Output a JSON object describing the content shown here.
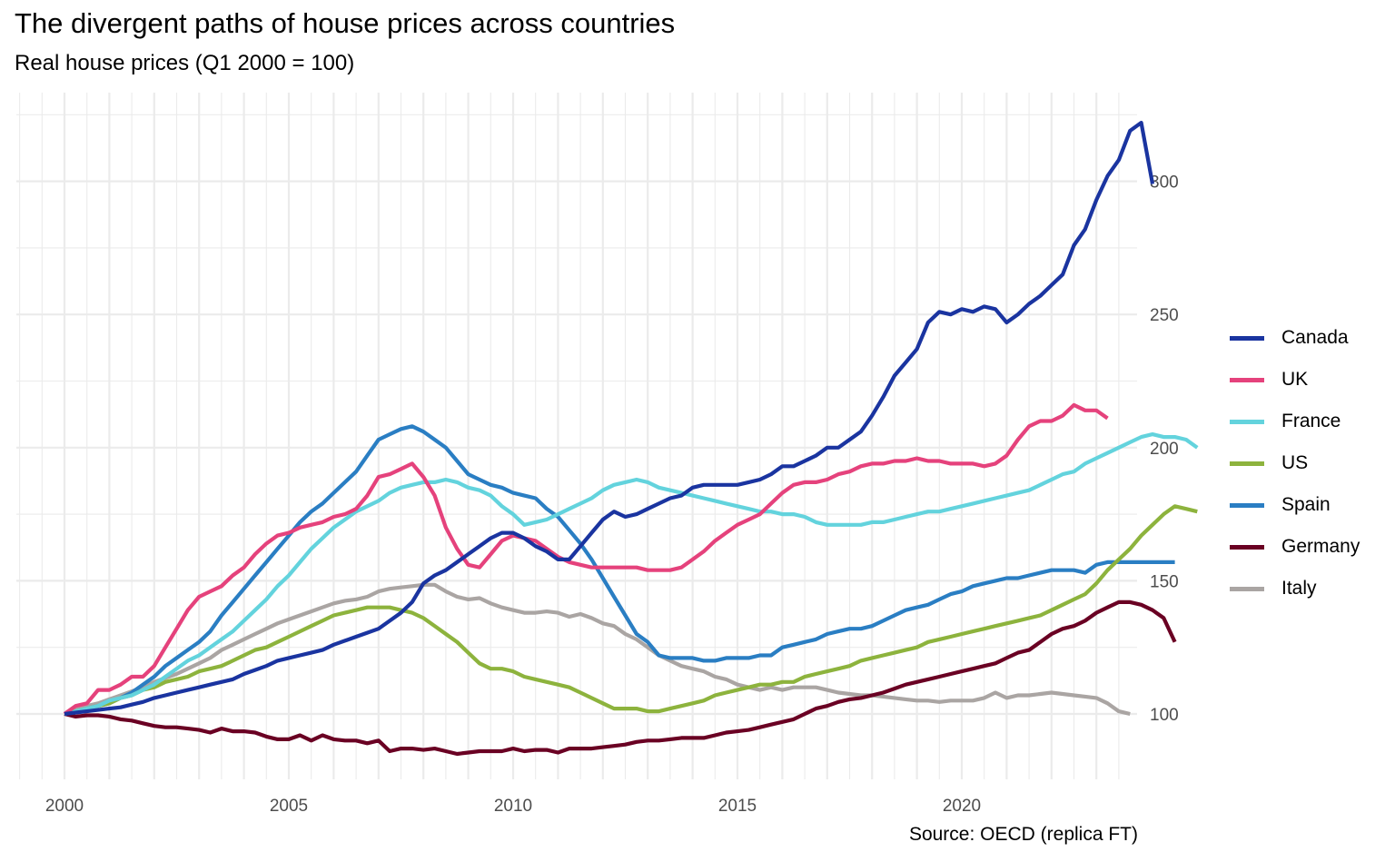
{
  "title": "The divergent paths of house prices across countries",
  "subtitle": "Real house prices (Q1 2000 = 100)",
  "caption": "Source: OECD (replica FT)",
  "chart_data": {
    "type": "line",
    "title": "The divergent paths of house prices across countries",
    "subtitle": "Real house prices (Q1 2000 = 100)",
    "xlabel": "",
    "ylabel": "",
    "x_start": 2000,
    "x_step": 0.25,
    "xlim": [
      1999,
      2023.9
    ],
    "ylim": [
      75,
      325
    ],
    "x_ticks": [
      2000,
      2005,
      2010,
      2015,
      2020
    ],
    "x_tick_labels": [
      "2000",
      "2005",
      "2010",
      "2015",
      "2020"
    ],
    "y_ticks": [
      100,
      150,
      200,
      250,
      300
    ],
    "y_tick_labels": [
      "100",
      "150",
      "200",
      "250",
      "300"
    ],
    "y_axis_position": "right",
    "grid": true,
    "legend_position": "right",
    "series": [
      {
        "name": "Canada",
        "color": "#1a34a0",
        "values": [
          100,
          100.5,
          101,
          101.5,
          102,
          102.5,
          103.5,
          104.5,
          106,
          107,
          108,
          109,
          110,
          111,
          112,
          113,
          115,
          116.5,
          118,
          120,
          121,
          122,
          123,
          124,
          126,
          127.5,
          129,
          130.5,
          132,
          135,
          138,
          142,
          149,
          152,
          154,
          157,
          160,
          163,
          166,
          168,
          168,
          166,
          163,
          161,
          158,
          158,
          163,
          168,
          173,
          176,
          174,
          175,
          177,
          179,
          181,
          182,
          185,
          186,
          186,
          186,
          186,
          187,
          188,
          190,
          193,
          193,
          195,
          197,
          200,
          200,
          203,
          206,
          212,
          219,
          227,
          232,
          237,
          247,
          251,
          250,
          252,
          251,
          253,
          252,
          247,
          250,
          254,
          257,
          261,
          265,
          276,
          282,
          293,
          302,
          308,
          319,
          322,
          299
        ]
      },
      {
        "name": "UK",
        "color": "#e5427c",
        "values": [
          100,
          103,
          104,
          109,
          109,
          111,
          114,
          114,
          118,
          125,
          132,
          139,
          144,
          146,
          148,
          152,
          155,
          160,
          164,
          167,
          168,
          170,
          171,
          172,
          174,
          175,
          177,
          182,
          189,
          190,
          192,
          194,
          189,
          182,
          170,
          162,
          156,
          155,
          160,
          165,
          167,
          166,
          165,
          162,
          159,
          157,
          156,
          155,
          155,
          155,
          155,
          155,
          154,
          154,
          154,
          155,
          158,
          161,
          165,
          168,
          171,
          173,
          175,
          179,
          183,
          186,
          187,
          187,
          188,
          190,
          191,
          193,
          194,
          194,
          195,
          195,
          196,
          195,
          195,
          194,
          194,
          194,
          193,
          194,
          197,
          203,
          208,
          210,
          210,
          212,
          216,
          214,
          214,
          211
        ]
      },
      {
        "name": "France",
        "color": "#63d3dd",
        "values": [
          100,
          101,
          102,
          103,
          105,
          106,
          107,
          109,
          111,
          114,
          117,
          120,
          122,
          125,
          128,
          131,
          135,
          139,
          143,
          148,
          152,
          157,
          162,
          166,
          170,
          173,
          176,
          178,
          180,
          183,
          185,
          186,
          187,
          187,
          188,
          187,
          185,
          184,
          182,
          178,
          175,
          171,
          172,
          173,
          175,
          177,
          179,
          181,
          184,
          186,
          187,
          188,
          187,
          185,
          184,
          183,
          182,
          181,
          180,
          179,
          178,
          177,
          176,
          176,
          175,
          175,
          174,
          172,
          171,
          171,
          171,
          171,
          172,
          172,
          173,
          174,
          175,
          176,
          176,
          177,
          178,
          179,
          180,
          181,
          182,
          183,
          184,
          186,
          188,
          190,
          191,
          194,
          196,
          198,
          200,
          202,
          204,
          205,
          204,
          204,
          203,
          200
        ]
      },
      {
        "name": "US",
        "color": "#8db33d",
        "values": [
          100,
          101,
          102,
          103,
          104,
          106,
          107,
          109,
          110,
          112,
          113,
          114,
          116,
          117,
          118,
          120,
          122,
          124,
          125,
          127,
          129,
          131,
          133,
          135,
          137,
          138,
          139,
          140,
          140,
          140,
          139,
          138,
          136,
          133,
          130,
          127,
          123,
          119,
          117,
          117,
          116,
          114,
          113,
          112,
          111,
          110,
          108,
          106,
          104,
          102,
          102,
          102,
          101,
          101,
          102,
          103,
          104,
          105,
          107,
          108,
          109,
          110,
          111,
          111,
          112,
          112,
          114,
          115,
          116,
          117,
          118,
          120,
          121,
          122,
          123,
          124,
          125,
          127,
          128,
          129,
          130,
          131,
          132,
          133,
          134,
          135,
          136,
          137,
          139,
          141,
          143,
          145,
          149,
          154,
          158,
          162,
          167,
          171,
          175,
          178,
          177,
          176
        ]
      },
      {
        "name": "Spain",
        "color": "#2a7ec3",
        "values": [
          100,
          101,
          102,
          103,
          104,
          106,
          108,
          111,
          114,
          118,
          121,
          124,
          127,
          131,
          137,
          142,
          147,
          152,
          157,
          162,
          167,
          172,
          176,
          179,
          183,
          187,
          191,
          197,
          203,
          205,
          207,
          208,
          206,
          203,
          200,
          195,
          190,
          188,
          186,
          185,
          183,
          182,
          181,
          177,
          174,
          169,
          164,
          158,
          151,
          144,
          137,
          130,
          127,
          122,
          121,
          121,
          121,
          120,
          120,
          121,
          121,
          121,
          122,
          122,
          125,
          126,
          127,
          128,
          130,
          131,
          132,
          132,
          133,
          135,
          137,
          139,
          140,
          141,
          143,
          145,
          146,
          148,
          149,
          150,
          151,
          151,
          152,
          153,
          154,
          154,
          154,
          153,
          156,
          157,
          157,
          157,
          157,
          157,
          157,
          157
        ]
      },
      {
        "name": "Germany",
        "color": "#6a0023",
        "values": [
          100,
          99,
          99.5,
          99.5,
          99,
          98,
          97.5,
          96.5,
          95.5,
          95,
          95,
          94.5,
          94,
          93,
          94.5,
          93.5,
          93.5,
          93,
          91.5,
          90.5,
          90.5,
          92,
          90,
          92,
          90.5,
          90,
          90,
          89,
          90,
          86,
          87,
          87,
          86.5,
          87,
          86,
          85,
          85.5,
          86,
          86,
          86,
          87,
          86,
          86.5,
          86.5,
          85.5,
          87,
          87,
          87,
          87.5,
          88,
          88.5,
          89.5,
          90,
          90,
          90.5,
          91,
          91,
          91,
          92,
          93,
          93.5,
          94,
          95,
          96,
          97,
          98,
          100,
          102,
          103,
          104.5,
          105.5,
          106,
          107,
          108,
          109.5,
          111,
          112,
          113,
          114,
          115,
          116,
          117,
          118,
          119,
          121,
          123,
          124,
          127,
          130,
          132,
          133,
          135,
          138,
          140,
          142,
          142,
          141,
          139,
          136,
          127
        ]
      },
      {
        "name": "Italy",
        "color": "#aaa5a3",
        "values": [
          100,
          101.5,
          103,
          104,
          105.5,
          107,
          108.5,
          110,
          112,
          113.5,
          115,
          117,
          119,
          121,
          124,
          126,
          128,
          130,
          132,
          134,
          135.5,
          137,
          138.5,
          140,
          141.5,
          142.5,
          143,
          144,
          146,
          147,
          147.5,
          148,
          148.5,
          148.5,
          146,
          144,
          143,
          143.5,
          141.5,
          140,
          139,
          138,
          138,
          138.5,
          138,
          136.5,
          137.5,
          136,
          134,
          133,
          130,
          128,
          125,
          122,
          120,
          118,
          117,
          116,
          114,
          113,
          111,
          110,
          109,
          110,
          109,
          110,
          110,
          110,
          109,
          108,
          107.5,
          107,
          107,
          106.5,
          106,
          105.5,
          105,
          105,
          104.5,
          105,
          105,
          105,
          106,
          108,
          106,
          107,
          107,
          107.5,
          108,
          107.5,
          107,
          106.5,
          106,
          104,
          101,
          100
        ]
      }
    ]
  }
}
